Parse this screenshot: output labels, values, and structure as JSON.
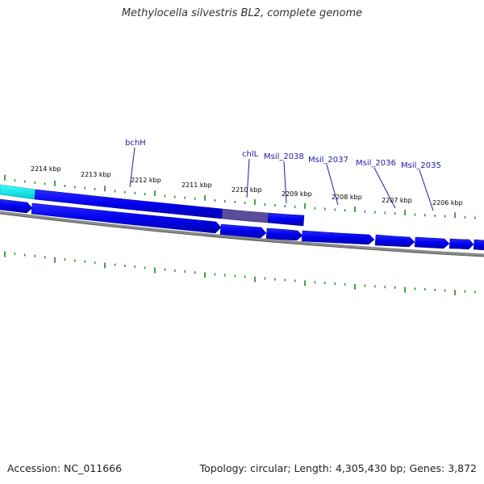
{
  "title": "Methylocella silvestris BL2, complete genome",
  "footer": {
    "accession": "Accession: NC_011666",
    "summary": "Topology: circular; Length: 4,305,430 bp; Genes: 3,872"
  },
  "ticks": [
    {
      "label": "2214 kbp"
    },
    {
      "label": "2213 kbp"
    },
    {
      "label": "2212 kbp"
    },
    {
      "label": "2211 kbp"
    },
    {
      "label": "2210 kbp"
    },
    {
      "label": "2209 kbp"
    },
    {
      "label": "2208 kbp"
    },
    {
      "label": "2207 kbp"
    },
    {
      "label": "2206 kbp"
    }
  ],
  "genes": [
    {
      "label": "bchH"
    },
    {
      "label": "chlL"
    },
    {
      "label": "Msil_2038"
    },
    {
      "label": "Msil_2037"
    },
    {
      "label": "Msil_2036"
    },
    {
      "label": "Msil_2035"
    }
  ],
  "colors": {
    "cds": "#0000ee",
    "cds_dark": "#0000a0",
    "highlight": "#00e0e0",
    "overlap": "#6050a0",
    "backbone": "#808080",
    "tick": "#1a8a1a",
    "gene_label": "#1a1aa8"
  }
}
